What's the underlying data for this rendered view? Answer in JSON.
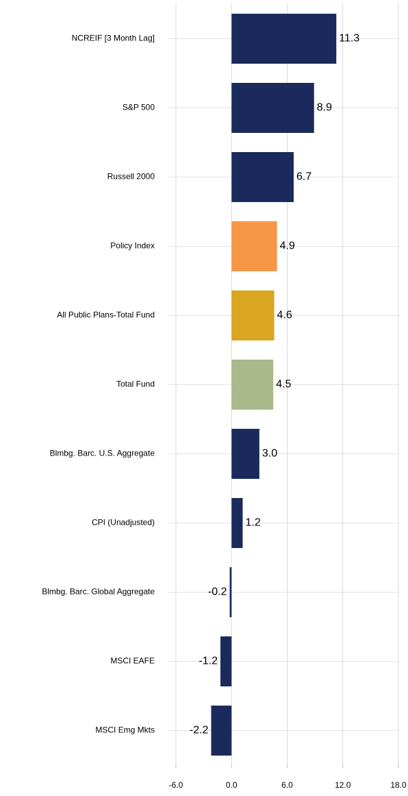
{
  "chart_data": {
    "type": "barh",
    "categories": [
      "NCREIF [3 Month Lag]",
      "S&P 500",
      "Russell 2000",
      "Policy Index",
      "All Public Plans-Total Fund",
      "Total Fund",
      "Blmbg. Barc. U.S. Aggregate",
      "CPI (Unadjusted)",
      "Blmbg. Barc. Global Aggregate",
      "MSCI EAFE",
      "MSCI Emg Mkts"
    ],
    "values": [
      11.3,
      8.9,
      6.7,
      4.9,
      4.6,
      4.5,
      3.0,
      1.2,
      -0.2,
      -1.2,
      -2.2
    ],
    "value_labels": [
      "11.3",
      "8.9",
      "6.7",
      "4.9",
      "4.6",
      "4.5",
      "3.0",
      "1.2",
      "-0.2",
      "-1.2",
      "-2.2"
    ],
    "colors": [
      "#1b2a5c",
      "#1b2a5c",
      "#1b2a5c",
      "#f79646",
      "#daa520",
      "#a9b98a",
      "#1b2a5c",
      "#1b2a5c",
      "#1b2a5c",
      "#1b2a5c",
      "#1b2a5c"
    ],
    "xlim": [
      -6,
      18
    ],
    "xticks": [
      {
        "value": -6,
        "label": "-6.0"
      },
      {
        "value": 0,
        "label": "0.0"
      },
      {
        "value": 6,
        "label": "6.0"
      },
      {
        "value": 12,
        "label": "12.0"
      },
      {
        "value": 18,
        "label": "18.0"
      }
    ],
    "grid": true
  }
}
